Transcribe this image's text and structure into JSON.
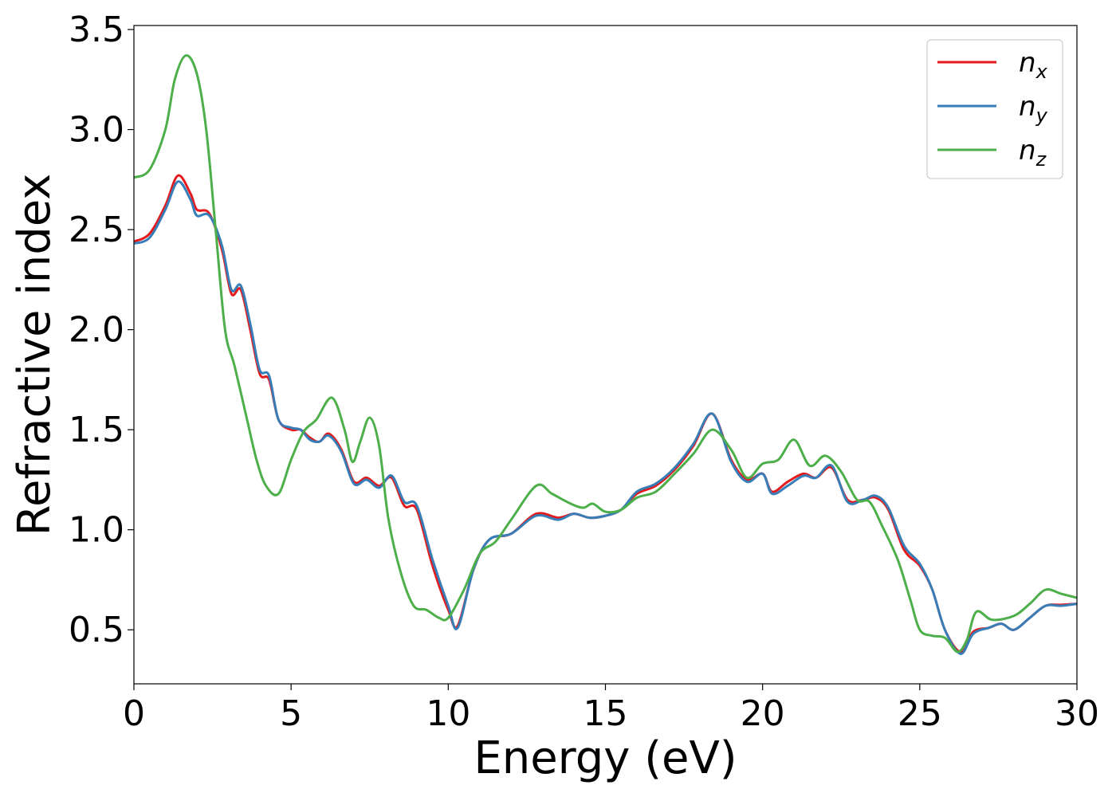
{
  "chart_data": {
    "type": "line",
    "xlabel": "Energy (eV)",
    "ylabel": "Refractive index",
    "xlim": [
      0,
      30
    ],
    "ylim": [
      0.23,
      3.52
    ],
    "xticks": [
      "0",
      "5",
      "10",
      "15",
      "20",
      "25",
      "30"
    ],
    "yticks": [
      "0.5",
      "1.0",
      "1.5",
      "2.0",
      "2.5",
      "3.0",
      "3.5"
    ],
    "grid": false,
    "legend_position": "top-right",
    "series": [
      {
        "name": "n",
        "sub": "x",
        "color": "#e41a1c",
        "points": [
          [
            0,
            2.44
          ],
          [
            0.5,
            2.48
          ],
          [
            1.0,
            2.62
          ],
          [
            1.4,
            2.77
          ],
          [
            1.8,
            2.68
          ],
          [
            2.0,
            2.6
          ],
          [
            2.4,
            2.58
          ],
          [
            2.8,
            2.4
          ],
          [
            3.1,
            2.18
          ],
          [
            3.4,
            2.2
          ],
          [
            3.7,
            2.0
          ],
          [
            4.0,
            1.78
          ],
          [
            4.3,
            1.75
          ],
          [
            4.6,
            1.55
          ],
          [
            5.0,
            1.5
          ],
          [
            5.3,
            1.5
          ],
          [
            5.6,
            1.46
          ],
          [
            5.9,
            1.44
          ],
          [
            6.2,
            1.48
          ],
          [
            6.6,
            1.4
          ],
          [
            7.0,
            1.24
          ],
          [
            7.4,
            1.26
          ],
          [
            7.8,
            1.22
          ],
          [
            8.2,
            1.26
          ],
          [
            8.6,
            1.12
          ],
          [
            9.0,
            1.1
          ],
          [
            9.5,
            0.82
          ],
          [
            10.0,
            0.6
          ],
          [
            10.3,
            0.52
          ],
          [
            10.8,
            0.8
          ],
          [
            11.3,
            0.95
          ],
          [
            12.0,
            0.98
          ],
          [
            12.8,
            1.08
          ],
          [
            13.5,
            1.06
          ],
          [
            14.0,
            1.08
          ],
          [
            14.5,
            1.06
          ],
          [
            15.0,
            1.07
          ],
          [
            15.5,
            1.1
          ],
          [
            16.0,
            1.18
          ],
          [
            16.6,
            1.22
          ],
          [
            17.2,
            1.3
          ],
          [
            17.8,
            1.42
          ],
          [
            18.4,
            1.58
          ],
          [
            19.0,
            1.35
          ],
          [
            19.5,
            1.25
          ],
          [
            20.0,
            1.28
          ],
          [
            20.3,
            1.19
          ],
          [
            20.8,
            1.24
          ],
          [
            21.3,
            1.28
          ],
          [
            21.7,
            1.26
          ],
          [
            22.2,
            1.31
          ],
          [
            22.7,
            1.15
          ],
          [
            23.2,
            1.15
          ],
          [
            23.6,
            1.16
          ],
          [
            24.0,
            1.1
          ],
          [
            24.5,
            0.9
          ],
          [
            25.0,
            0.82
          ],
          [
            25.4,
            0.7
          ],
          [
            25.8,
            0.5
          ],
          [
            26.3,
            0.39
          ],
          [
            26.7,
            0.49
          ],
          [
            27.2,
            0.51
          ],
          [
            27.6,
            0.53
          ],
          [
            28.0,
            0.5
          ],
          [
            28.5,
            0.56
          ],
          [
            29.0,
            0.62
          ],
          [
            29.5,
            0.625
          ],
          [
            30.0,
            0.63
          ]
        ]
      },
      {
        "name": "n",
        "sub": "y",
        "color": "#377eb8",
        "points": [
          [
            0,
            2.43
          ],
          [
            0.5,
            2.46
          ],
          [
            1.0,
            2.6
          ],
          [
            1.4,
            2.74
          ],
          [
            1.8,
            2.65
          ],
          [
            2.0,
            2.57
          ],
          [
            2.4,
            2.57
          ],
          [
            2.8,
            2.42
          ],
          [
            3.1,
            2.2
          ],
          [
            3.4,
            2.22
          ],
          [
            3.7,
            2.03
          ],
          [
            4.0,
            1.8
          ],
          [
            4.3,
            1.77
          ],
          [
            4.6,
            1.55
          ],
          [
            5.0,
            1.51
          ],
          [
            5.3,
            1.5
          ],
          [
            5.6,
            1.45
          ],
          [
            5.9,
            1.44
          ],
          [
            6.2,
            1.47
          ],
          [
            6.6,
            1.39
          ],
          [
            7.0,
            1.23
          ],
          [
            7.4,
            1.25
          ],
          [
            7.8,
            1.21
          ],
          [
            8.2,
            1.27
          ],
          [
            8.6,
            1.14
          ],
          [
            9.0,
            1.12
          ],
          [
            9.5,
            0.85
          ],
          [
            10.0,
            0.62
          ],
          [
            10.3,
            0.51
          ],
          [
            10.8,
            0.8
          ],
          [
            11.3,
            0.95
          ],
          [
            12.0,
            0.98
          ],
          [
            12.8,
            1.07
          ],
          [
            13.5,
            1.05
          ],
          [
            14.0,
            1.08
          ],
          [
            14.5,
            1.06
          ],
          [
            15.0,
            1.07
          ],
          [
            15.5,
            1.1
          ],
          [
            16.0,
            1.19
          ],
          [
            16.6,
            1.23
          ],
          [
            17.2,
            1.31
          ],
          [
            17.8,
            1.43
          ],
          [
            18.4,
            1.58
          ],
          [
            19.0,
            1.34
          ],
          [
            19.5,
            1.24
          ],
          [
            20.0,
            1.28
          ],
          [
            20.3,
            1.18
          ],
          [
            20.8,
            1.22
          ],
          [
            21.3,
            1.27
          ],
          [
            21.7,
            1.26
          ],
          [
            22.2,
            1.32
          ],
          [
            22.7,
            1.14
          ],
          [
            23.2,
            1.15
          ],
          [
            23.6,
            1.17
          ],
          [
            24.0,
            1.11
          ],
          [
            24.5,
            0.92
          ],
          [
            25.0,
            0.83
          ],
          [
            25.4,
            0.7
          ],
          [
            25.8,
            0.5
          ],
          [
            26.3,
            0.38
          ],
          [
            26.7,
            0.48
          ],
          [
            27.2,
            0.51
          ],
          [
            27.6,
            0.53
          ],
          [
            28.0,
            0.5
          ],
          [
            28.5,
            0.56
          ],
          [
            29.0,
            0.62
          ],
          [
            29.5,
            0.62
          ],
          [
            30.0,
            0.63
          ]
        ]
      },
      {
        "name": "n",
        "sub": "z",
        "color": "#4daf4a",
        "points": [
          [
            0,
            2.76
          ],
          [
            0.5,
            2.8
          ],
          [
            1.0,
            3.0
          ],
          [
            1.3,
            3.25
          ],
          [
            1.65,
            3.37
          ],
          [
            2.0,
            3.28
          ],
          [
            2.3,
            3.0
          ],
          [
            2.6,
            2.5
          ],
          [
            2.9,
            2.0
          ],
          [
            3.2,
            1.82
          ],
          [
            3.6,
            1.55
          ],
          [
            3.9,
            1.35
          ],
          [
            4.2,
            1.22
          ],
          [
            4.6,
            1.18
          ],
          [
            5.0,
            1.35
          ],
          [
            5.4,
            1.49
          ],
          [
            5.8,
            1.55
          ],
          [
            6.3,
            1.66
          ],
          [
            6.7,
            1.5
          ],
          [
            6.95,
            1.34
          ],
          [
            7.2,
            1.44
          ],
          [
            7.5,
            1.56
          ],
          [
            7.8,
            1.42
          ],
          [
            8.1,
            1.05
          ],
          [
            8.5,
            0.78
          ],
          [
            8.9,
            0.62
          ],
          [
            9.3,
            0.6
          ],
          [
            9.7,
            0.56
          ],
          [
            10.0,
            0.56
          ],
          [
            10.5,
            0.7
          ],
          [
            11.0,
            0.88
          ],
          [
            11.5,
            0.94
          ],
          [
            12.0,
            1.05
          ],
          [
            12.8,
            1.22
          ],
          [
            13.3,
            1.18
          ],
          [
            13.9,
            1.13
          ],
          [
            14.3,
            1.11
          ],
          [
            14.6,
            1.13
          ],
          [
            15.0,
            1.09
          ],
          [
            15.5,
            1.1
          ],
          [
            16.0,
            1.16
          ],
          [
            16.6,
            1.19
          ],
          [
            17.2,
            1.28
          ],
          [
            17.8,
            1.38
          ],
          [
            18.4,
            1.5
          ],
          [
            19.0,
            1.4
          ],
          [
            19.5,
            1.26
          ],
          [
            20.0,
            1.33
          ],
          [
            20.5,
            1.35
          ],
          [
            21.0,
            1.45
          ],
          [
            21.5,
            1.32
          ],
          [
            22.0,
            1.37
          ],
          [
            22.5,
            1.29
          ],
          [
            23.0,
            1.15
          ],
          [
            23.4,
            1.14
          ],
          [
            23.8,
            1.02
          ],
          [
            24.3,
            0.85
          ],
          [
            24.7,
            0.65
          ],
          [
            25.0,
            0.5
          ],
          [
            25.4,
            0.47
          ],
          [
            25.8,
            0.46
          ],
          [
            26.2,
            0.39
          ],
          [
            26.5,
            0.45
          ],
          [
            26.8,
            0.59
          ],
          [
            27.3,
            0.55
          ],
          [
            28.0,
            0.57
          ],
          [
            28.5,
            0.63
          ],
          [
            29.0,
            0.7
          ],
          [
            29.5,
            0.68
          ],
          [
            30.0,
            0.66
          ]
        ]
      }
    ]
  }
}
